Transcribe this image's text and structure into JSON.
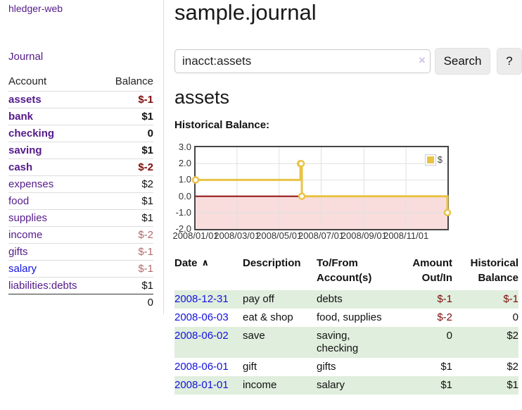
{
  "app": {
    "brand": "hledger-web"
  },
  "sidebar": {
    "journal_link": "Journal",
    "accounts_table": {
      "account_header": "Account",
      "balance_header": "Balance",
      "rows": [
        {
          "name": "assets",
          "balance": "$-1",
          "level": 1,
          "bold": true,
          "name_color": "purple",
          "balance_style": "neg"
        },
        {
          "name": "bank",
          "balance": "$1",
          "level": 2,
          "bold": true,
          "name_color": "purple",
          "balance_style": "bold"
        },
        {
          "name": "checking",
          "balance": "0",
          "level": 3,
          "bold": true,
          "name_color": "purple",
          "balance_style": "bold"
        },
        {
          "name": "saving",
          "balance": "$1",
          "level": 3,
          "bold": true,
          "name_color": "purple",
          "balance_style": "bold"
        },
        {
          "name": "cash",
          "balance": "$-2",
          "level": 2,
          "bold": true,
          "name_color": "purple",
          "balance_style": "neg"
        },
        {
          "name": "expenses",
          "balance": "$2",
          "level": 1,
          "bold": false,
          "name_color": "purple",
          "balance_style": "plain"
        },
        {
          "name": "food",
          "balance": "$1",
          "level": 2,
          "bold": false,
          "name_color": "purple",
          "balance_style": "plain"
        },
        {
          "name": "supplies",
          "balance": "$1",
          "level": 2,
          "bold": false,
          "name_color": "purple",
          "balance_style": "plain"
        },
        {
          "name": "income",
          "balance": "$-2",
          "level": 1,
          "bold": false,
          "name_color": "purple",
          "balance_style": "muted"
        },
        {
          "name": "gifts",
          "balance": "$-1",
          "level": 2,
          "bold": false,
          "name_color": "purple",
          "balance_style": "muted"
        },
        {
          "name": "salary",
          "balance": "$-1",
          "level": 2,
          "bold": false,
          "name_color": "blue",
          "balance_style": "muted"
        },
        {
          "name": "liabilities:debts",
          "balance": "$1",
          "level": 1,
          "bold": false,
          "name_color": "purple",
          "balance_style": "plain"
        }
      ],
      "total": "0"
    }
  },
  "main": {
    "title": "sample.journal",
    "search": {
      "value": "inacct:assets",
      "clear_icon": "×",
      "search_button": "Search",
      "help_button": "?"
    },
    "account_heading": "assets"
  },
  "chart_data": {
    "type": "line",
    "style": "step",
    "title": "Historical Balance:",
    "legend": {
      "label": "$",
      "position": "top-right"
    },
    "series": [
      {
        "name": "$",
        "color": "#e9c345",
        "points": [
          {
            "date": "2008-01-01",
            "day": 0,
            "value": 1
          },
          {
            "date": "2008-06-01",
            "day": 152,
            "value": 2
          },
          {
            "date": "2008-06-02",
            "day": 153,
            "value": 2
          },
          {
            "date": "2008-06-03",
            "day": 154,
            "value": 0
          },
          {
            "date": "2008-12-31",
            "day": 365,
            "value": -1
          }
        ]
      }
    ],
    "ylim": [
      -2,
      3
    ],
    "x_range_days": [
      0,
      365
    ],
    "y_ticks": [
      {
        "label": "3.0",
        "value": 3
      },
      {
        "label": "2.0",
        "value": 2
      },
      {
        "label": "1.0",
        "value": 1
      },
      {
        "label": "0.0",
        "value": 0
      },
      {
        "label": "-1.0",
        "value": -1
      },
      {
        "label": "-2.0",
        "value": -2
      }
    ],
    "x_ticks": [
      {
        "label": "2008/01/01",
        "day": 0
      },
      {
        "label": "2008/03/01",
        "day": 60
      },
      {
        "label": "2008/05/01",
        "day": 121
      },
      {
        "label": "2008/07/01",
        "day": 182
      },
      {
        "label": "2008/09/01",
        "day": 244
      },
      {
        "label": "2008/11/01",
        "day": 305
      }
    ],
    "y_grid_values": [
      2,
      1,
      -1
    ],
    "grid_on": true,
    "zero_line_color": "#8f1010",
    "negative_region_color": "#f9dddd",
    "grid_color": "#e0e0e0"
  },
  "transactions": {
    "headers": {
      "date": "Date",
      "sort_indicator": "∧",
      "description": "Description",
      "accounts": "To/From Account(s)",
      "amount": "Amount Out/In",
      "balance": "Historical Balance"
    },
    "rows": [
      {
        "date": "2008-12-31",
        "description": "pay off",
        "accounts": "debts",
        "amount": "$-1",
        "amount_negative": true,
        "balance": "$-1",
        "balance_negative": true
      },
      {
        "date": "2008-06-03",
        "description": "eat & shop",
        "accounts": "food, supplies",
        "amount": "$-2",
        "amount_negative": true,
        "balance": "0",
        "balance_negative": false
      },
      {
        "date": "2008-06-02",
        "description": "save",
        "accounts": "saving, checking",
        "amount": "0",
        "amount_negative": false,
        "balance": "$2",
        "balance_negative": false
      },
      {
        "date": "2008-06-01",
        "description": "gift",
        "accounts": "gifts",
        "amount": "$1",
        "amount_negative": false,
        "balance": "$2",
        "balance_negative": false
      },
      {
        "date": "2008-01-01",
        "description": "income",
        "accounts": "salary",
        "amount": "$1",
        "amount_negative": false,
        "balance": "$1",
        "balance_negative": false
      }
    ]
  },
  "colors": {
    "link_purple": "#551a8b",
    "link_blue": "#1212e0",
    "negative_strong": "#7f0c0c",
    "negative_muted": "#b26b6b",
    "row_stripe_green": "#e0eedd",
    "chart_series_gold": "#e9c345",
    "chart_negative_region": "#f9dddd",
    "chart_zero_line": "#8f1010"
  }
}
